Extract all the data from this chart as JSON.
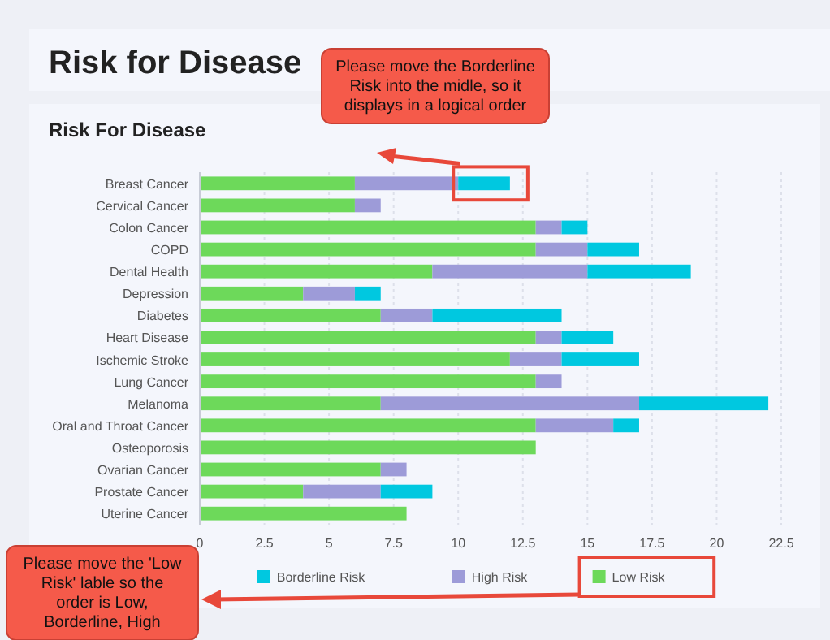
{
  "chart_data": {
    "type": "bar",
    "orientation": "horizontal",
    "stacked": true,
    "title": "Risk for Disease",
    "subtitle": "Risk For Disease",
    "categories": [
      "Breast Cancer",
      "Cervical Cancer",
      "Colon Cancer",
      "COPD",
      "Dental Health",
      "Depression",
      "Diabetes",
      "Heart Disease",
      "Ischemic Stroke",
      "Lung Cancer",
      "Melanoma",
      "Oral and Throat Cancer",
      "Osteoporosis",
      "Ovarian Cancer",
      "Prostate Cancer",
      "Uterine Cancer"
    ],
    "series": [
      {
        "name": "Low Risk",
        "color": "#6dd95a",
        "values": [
          6,
          6,
          13,
          13,
          9,
          4,
          7,
          13,
          12,
          13,
          7,
          13,
          13,
          7,
          4,
          8
        ]
      },
      {
        "name": "High Risk",
        "color": "#9d9bd8",
        "values": [
          4,
          1,
          1,
          2,
          6,
          2,
          2,
          1,
          2,
          1,
          10,
          3,
          0,
          1,
          3,
          0
        ]
      },
      {
        "name": "Borderline Risk",
        "color": "#00c8e0",
        "values": [
          2,
          0,
          1,
          2,
          4,
          1,
          5,
          2,
          3,
          0,
          5,
          1,
          0,
          0,
          2,
          0
        ]
      }
    ],
    "xlim": [
      0,
      22.5
    ],
    "xticks": [
      0,
      2.5,
      5,
      7.5,
      10,
      12.5,
      15,
      17.5,
      20,
      22.5
    ],
    "grid": "x",
    "legend": "bottom",
    "annotations": [
      "Please move the Borderline Risk into the midle, so it displays in a logical order",
      "Please move the 'Low Risk' lable so the order is Low, Borderline, High"
    ]
  }
}
